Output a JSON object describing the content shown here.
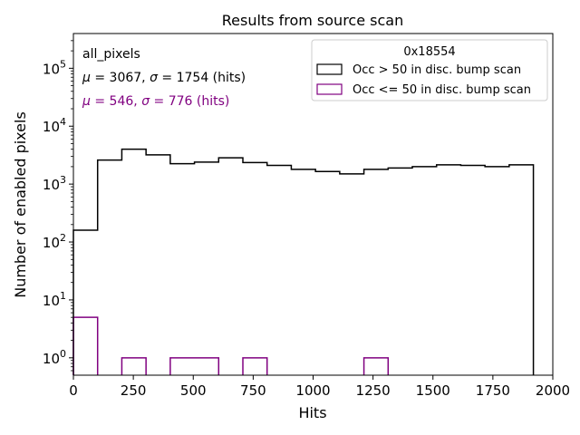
{
  "chart_data": {
    "type": "histogram",
    "title": "Results from source scan",
    "xlabel": "Hits",
    "ylabel": "Number of enabled pixels",
    "xlim": [
      0,
      2000
    ],
    "ylim_log10": [
      -0.3,
      5.6
    ],
    "yscale": "log",
    "bin_edges": [
      0,
      101,
      202,
      303,
      404,
      505,
      606,
      707,
      808,
      909,
      1010,
      1111,
      1212,
      1313,
      1414,
      1515,
      1616,
      1717,
      1818,
      1919,
      1940
    ],
    "x_ticks": [
      {
        "value": 0,
        "label": "0"
      },
      {
        "value": 250,
        "label": "250"
      },
      {
        "value": 500,
        "label": "500"
      },
      {
        "value": 750,
        "label": "750"
      },
      {
        "value": 1000,
        "label": "1000"
      },
      {
        "value": 1250,
        "label": "1250"
      },
      {
        "value": 1500,
        "label": "1500"
      },
      {
        "value": 1750,
        "label": "1750"
      },
      {
        "value": 2000,
        "label": "2000"
      }
    ],
    "y_ticks": [
      {
        "exp": 0,
        "base": "10",
        "sup": "0"
      },
      {
        "exp": 1,
        "base": "10",
        "sup": "1"
      },
      {
        "exp": 2,
        "base": "10",
        "sup": "2"
      },
      {
        "exp": 3,
        "base": "10",
        "sup": "3"
      },
      {
        "exp": 4,
        "base": "10",
        "sup": "4"
      },
      {
        "exp": 5,
        "base": "10",
        "sup": "5"
      }
    ],
    "series": [
      {
        "name": "Occ > 50 in disc. bump scan",
        "color": "#000000",
        "values": [
          160,
          2600,
          4000,
          3200,
          2250,
          2400,
          2850,
          2350,
          2100,
          1800,
          1650,
          1500,
          1800,
          1900,
          2000,
          2150,
          2100,
          2000,
          2150,
          0
        ]
      },
      {
        "name": "Occ <= 50 in disc. bump scan",
        "color": "#800080",
        "values": [
          5,
          0,
          1,
          0,
          1,
          1,
          0,
          1,
          0,
          0,
          0,
          0,
          1,
          0,
          0,
          0,
          0,
          0,
          0,
          0
        ]
      }
    ],
    "legend": {
      "title": "0x18554",
      "location": "upper right"
    },
    "annotations": {
      "label": "all_pixels",
      "stats1": {
        "mu_sym": "μ",
        "mu_val": " = 3067, ",
        "sigma_sym": "σ",
        "sigma_val": " = 1754 (hits)",
        "color": "#000000"
      },
      "stats2": {
        "mu_sym": "μ",
        "mu_val": " = 546, ",
        "sigma_sym": "σ",
        "sigma_val": " = 776 (hits)",
        "color": "#800080"
      }
    }
  }
}
